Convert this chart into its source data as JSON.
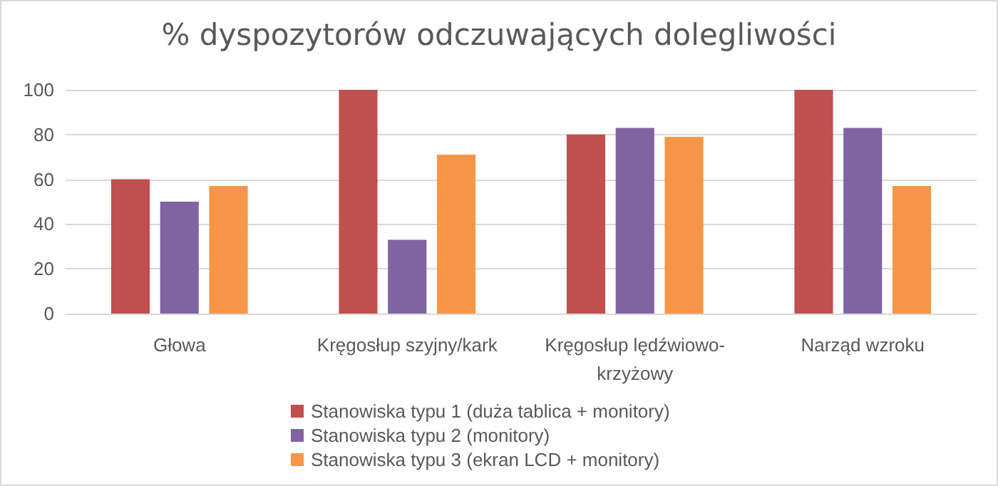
{
  "chart_data": {
    "type": "bar",
    "title": "% dyspozytorów odczuwających dolegliwości",
    "categories": [
      "Głowa",
      "Kręgosłup szyjny/kark",
      "Kręgosłup lędźwiowo-krzyżowy",
      "Narząd wzroku"
    ],
    "series": [
      {
        "name": "Stanowiska typu 1 (duża tablica + monitory)",
        "color": "#c0504d",
        "values": [
          60,
          100,
          80,
          100
        ]
      },
      {
        "name": "Stanowiska typu 2 (monitory)",
        "color": "#8064a2",
        "values": [
          50,
          33,
          83,
          83
        ]
      },
      {
        "name": "Stanowiska typu 3 (ekran LCD + monitory)",
        "color": "#f79646",
        "values": [
          57,
          71,
          79,
          57
        ]
      }
    ],
    "ylim": [
      0,
      100
    ],
    "yticks": [
      0,
      20,
      40,
      60,
      80,
      100
    ],
    "grid": "y",
    "legend": "bottom"
  }
}
